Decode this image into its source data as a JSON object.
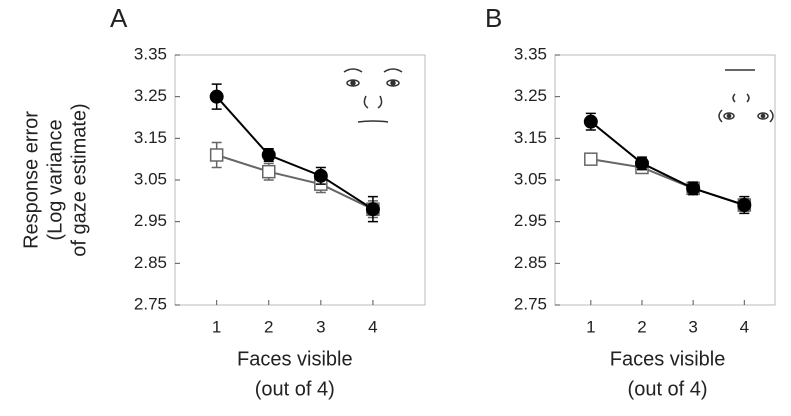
{
  "chart_data": [
    {
      "type": "line",
      "label": "A",
      "ylabel": [
        "Response error",
        "(Log variance",
        "of gaze estimate)"
      ],
      "xlabel": [
        "Faces visible",
        "(out of 4)"
      ],
      "x": [
        1,
        2,
        3,
        4
      ],
      "xlim": [
        0.2,
        5.0
      ],
      "xticks": [
        1,
        2,
        3,
        4
      ],
      "ylim": [
        2.75,
        3.35
      ],
      "yticks": [
        2.75,
        2.85,
        2.95,
        3.05,
        3.15,
        3.25,
        3.35
      ],
      "series": [
        {
          "color": "#000000",
          "fill": "#000000",
          "values": [
            3.25,
            3.11,
            3.06,
            2.98
          ],
          "errors": [
            0.03,
            0.015,
            0.02,
            0.03
          ]
        },
        {
          "color": "#666666",
          "fill": "#ffffff",
          "values": [
            3.11,
            3.07,
            3.04,
            2.98
          ],
          "errors": [
            0.03,
            0.02,
            0.02,
            0.02
          ]
        }
      ]
    },
    {
      "type": "line",
      "label": "B",
      "xlabel": [
        "Faces visible",
        "(out of 4)"
      ],
      "x": [
        1,
        2,
        3,
        4
      ],
      "xlim": [
        0.3,
        4.6
      ],
      "xticks": [
        1,
        2,
        3,
        4
      ],
      "ylim": [
        2.75,
        3.35
      ],
      "yticks": [
        2.75,
        2.85,
        2.95,
        3.05,
        3.15,
        3.25,
        3.35
      ],
      "series": [
        {
          "color": "#000000",
          "fill": "#000000",
          "values": [
            3.19,
            3.09,
            3.03,
            2.99
          ],
          "errors": [
            0.02,
            0.015,
            0.015,
            0.02
          ]
        },
        {
          "color": "#666666",
          "fill": "#ffffff",
          "values": [
            3.1,
            3.08,
            3.03,
            2.99
          ],
          "errors": [
            0.0,
            0.01,
            0.01,
            0.015
          ]
        }
      ]
    }
  ]
}
